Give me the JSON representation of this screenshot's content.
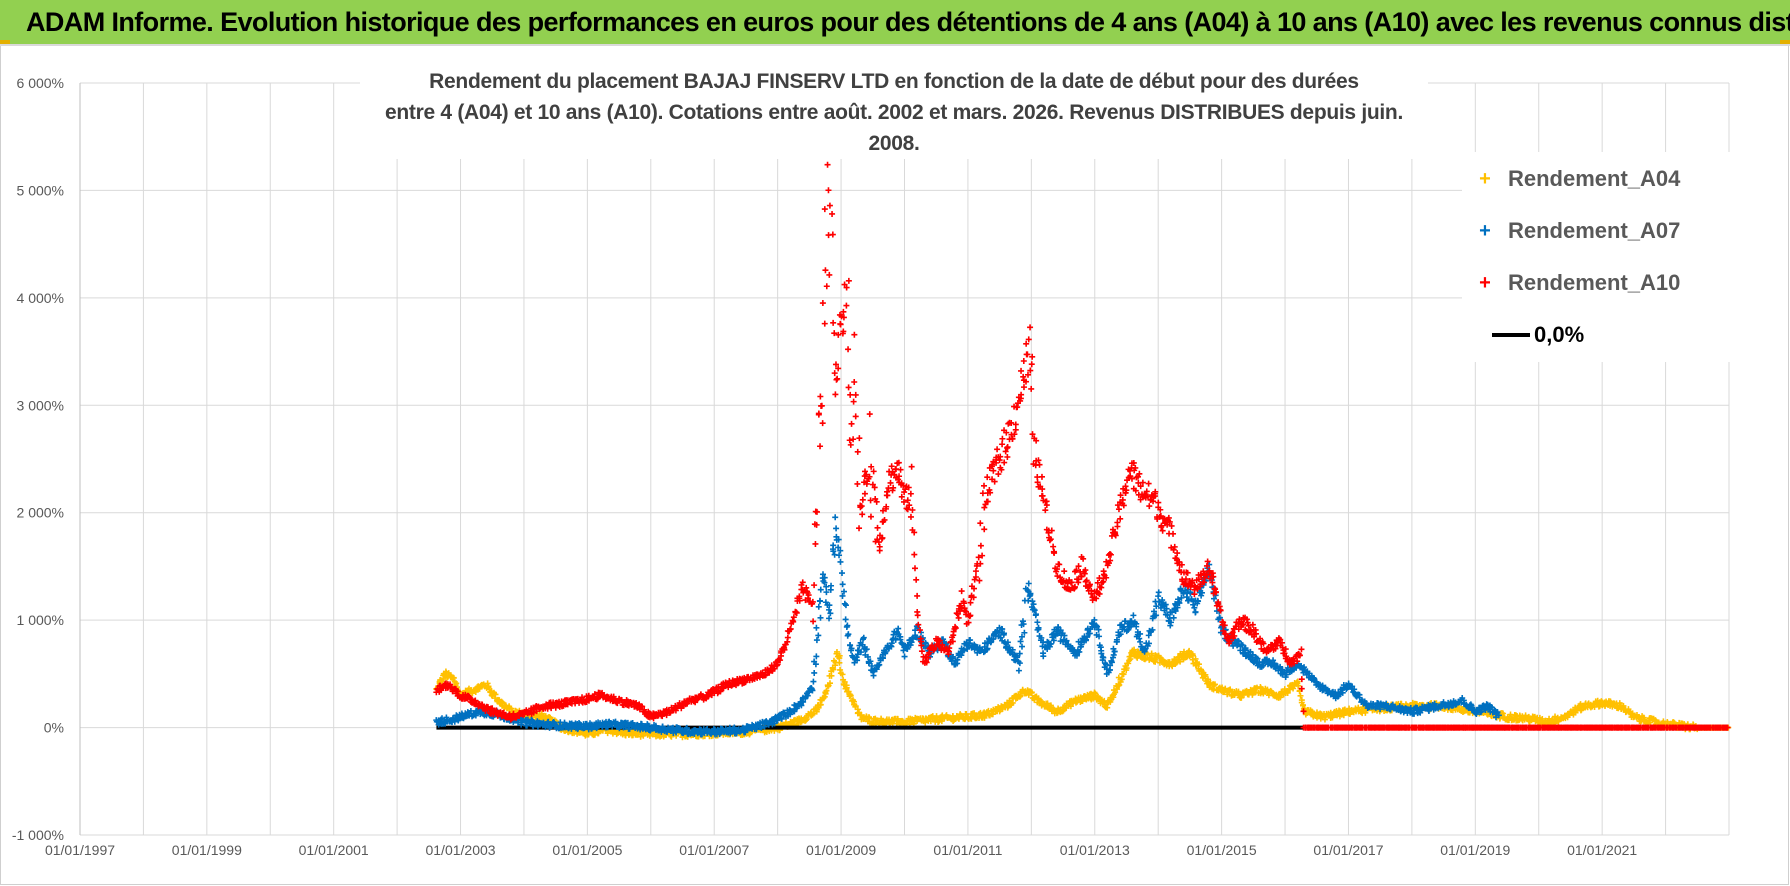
{
  "banner": {
    "title": "ADAM Informe. Evolution historique des performances en euros pour des détentions de 4 ans (A04) à 10 ans (A10) avec les revenus connus distribués"
  },
  "chart_data": {
    "type": "scatter",
    "title_line1": "Rendement du placement BAJAJ FINSERV LTD en fonction de la date de début pour des durées",
    "title_line2": "entre 4 (A04) et 10 ans (A10). Cotations entre août. 2002 et mars. 2026. Revenus DISTRIBUES depuis juin. 2008.",
    "xlabel": "",
    "ylabel": "",
    "xlim": [
      1997.0,
      2023.0
    ],
    "ylim": [
      -1000,
      6000
    ],
    "y_ticks": [
      {
        "value": -1000,
        "label": "-1 000%"
      },
      {
        "value": 0,
        "label": "0%"
      },
      {
        "value": 1000,
        "label": "1 000%"
      },
      {
        "value": 2000,
        "label": "2 000%"
      },
      {
        "value": 3000,
        "label": "3 000%"
      },
      {
        "value": 4000,
        "label": "4 000%"
      },
      {
        "value": 5000,
        "label": "5 000%"
      },
      {
        "value": 6000,
        "label": "6 000%"
      }
    ],
    "x_ticks": [
      {
        "value": 1997,
        "label": "01/01/1997"
      },
      {
        "value": 1999,
        "label": "01/01/1999"
      },
      {
        "value": 2001,
        "label": "01/01/2001"
      },
      {
        "value": 2003,
        "label": "01/01/2003"
      },
      {
        "value": 2005,
        "label": "01/01/2005"
      },
      {
        "value": 2007,
        "label": "01/01/2007"
      },
      {
        "value": 2009,
        "label": "01/01/2009"
      },
      {
        "value": 2011,
        "label": "01/01/2011"
      },
      {
        "value": 2013,
        "label": "01/01/2013"
      },
      {
        "value": 2015,
        "label": "01/01/2015"
      },
      {
        "value": 2017,
        "label": "01/01/2017"
      },
      {
        "value": 2019,
        "label": "01/01/2019"
      },
      {
        "value": 2021,
        "label": "01/01/2021"
      }
    ],
    "minor_gridlines_x": [
      1998,
      2000,
      2002,
      2004,
      2006,
      2008,
      2010,
      2012,
      2014,
      2016,
      2018,
      2020,
      2022,
      2023
    ],
    "grid": true,
    "legend_position": "top-right",
    "series": [
      {
        "name": "Rendement_A04",
        "color": "#ffc000",
        "marker": "+",
        "x": [
          2002.62,
          2002.75,
          2002.9,
          2003.0,
          2003.2,
          2003.4,
          2003.6,
          2003.8,
          2004.0,
          2004.3,
          2004.6,
          2004.9,
          2005.0,
          2005.3,
          2005.6,
          2006.0,
          2006.5,
          2007.0,
          2007.5,
          2008.0,
          2008.3,
          2008.6,
          2008.75,
          2008.85,
          2008.95,
          2009.05,
          2009.15,
          2009.3,
          2009.5,
          2010.0,
          2010.5,
          2011.0,
          2011.3,
          2011.6,
          2011.9,
          2012.1,
          2012.4,
          2012.7,
          2013.0,
          2013.2,
          2013.4,
          2013.6,
          2013.9,
          2014.2,
          2014.5,
          2014.8,
          2015.0,
          2015.3,
          2015.6,
          2015.9,
          2016.2,
          2016.3,
          2016.6,
          2017.0,
          2017.5,
          2018.0,
          2018.5,
          2019.0,
          2019.5,
          2019.9,
          2020.1,
          2020.4,
          2020.7,
          2021.0,
          2021.3,
          2021.5,
          2021.6,
          2022.0,
          2022.5,
          2023.0
        ],
        "y": [
          350,
          500,
          450,
          300,
          350,
          400,
          250,
          150,
          120,
          100,
          0,
          -40,
          -60,
          -20,
          -50,
          -60,
          -60,
          -50,
          -40,
          0,
          50,
          150,
          300,
          500,
          700,
          400,
          300,
          100,
          60,
          50,
          80,
          100,
          120,
          200,
          350,
          250,
          150,
          250,
          300,
          200,
          450,
          700,
          650,
          600,
          700,
          400,
          350,
          300,
          350,
          300,
          400,
          150,
          100,
          150,
          180,
          200,
          200,
          150,
          100,
          80,
          50,
          100,
          200,
          230,
          200,
          100,
          80,
          30,
          0,
          0
        ]
      },
      {
        "name": "Rendement_A07",
        "color": "#0070c0",
        "marker": "+",
        "x": [
          2002.62,
          2002.9,
          2003.0,
          2003.3,
          2003.6,
          2004.0,
          2004.3,
          2004.6,
          2005.0,
          2005.3,
          2005.6,
          2006.0,
          2006.5,
          2007.0,
          2007.5,
          2007.9,
          2008.2,
          2008.4,
          2008.55,
          2008.7,
          2008.82,
          2008.92,
          2009.0,
          2009.1,
          2009.2,
          2009.35,
          2009.5,
          2009.7,
          2009.9,
          2010.0,
          2010.2,
          2010.4,
          2010.6,
          2010.8,
          2011.0,
          2011.2,
          2011.5,
          2011.8,
          2011.95,
          2012.2,
          2012.4,
          2012.7,
          2013.0,
          2013.2,
          2013.4,
          2013.6,
          2013.8,
          2014.0,
          2014.2,
          2014.4,
          2014.6,
          2014.8,
          2015.0,
          2015.2,
          2015.4,
          2015.6,
          2015.8,
          2016.0,
          2016.2,
          2016.5,
          2016.8,
          2017.0,
          2017.3,
          2017.6,
          2018.0,
          2018.4,
          2018.8,
          2019.0,
          2019.2,
          2019.38
        ],
        "y": [
          50,
          80,
          100,
          150,
          120,
          50,
          30,
          20,
          10,
          30,
          20,
          0,
          -30,
          -40,
          -20,
          50,
          150,
          250,
          400,
          1400,
          1100,
          1900,
          1500,
          900,
          600,
          800,
          500,
          700,
          900,
          700,
          900,
          700,
          800,
          600,
          800,
          700,
          900,
          600,
          1300,
          700,
          900,
          700,
          1000,
          500,
          900,
          1000,
          700,
          1200,
          1000,
          1300,
          1100,
          1500,
          900,
          800,
          700,
          600,
          600,
          500,
          600,
          400,
          300,
          400,
          200,
          200,
          150,
          200,
          250,
          150,
          200,
          100
        ]
      },
      {
        "name": "Rendement_A10",
        "color": "#ff0000",
        "marker": "+",
        "x": [
          2002.62,
          2002.8,
          2003.0,
          2003.2,
          2003.5,
          2003.8,
          2004.0,
          2004.3,
          2004.6,
          2004.9,
          2005.2,
          2005.5,
          2005.8,
          2006.0,
          2006.3,
          2006.6,
          2006.9,
          2007.2,
          2007.5,
          2007.8,
          2008.0,
          2008.2,
          2008.4,
          2008.55,
          2008.62,
          2008.72,
          2008.8,
          2008.87,
          2008.92,
          2009.0,
          2009.1,
          2009.16,
          2009.22,
          2009.3,
          2009.45,
          2009.6,
          2009.75,
          2009.9,
          2010.0,
          2010.1,
          2010.2,
          2010.3,
          2010.5,
          2010.7,
          2010.9,
          2011.0,
          2011.15,
          2011.3,
          2011.5,
          2011.7,
          2011.85,
          2011.95,
          2012.05,
          2012.2,
          2012.4,
          2012.6,
          2012.8,
          2013.0,
          2013.2,
          2013.35,
          2013.55,
          2013.75,
          2013.95,
          2014.2,
          2014.4,
          2014.6,
          2014.8,
          2015.0,
          2015.1,
          2015.3,
          2015.5,
          2015.7,
          2015.9,
          2016.1,
          2016.25,
          2016.3,
          2016.6,
          2017.0,
          2017.5,
          2018.0,
          2018.5,
          2019.0,
          2019.5,
          2020.0,
          2020.5,
          2021.0,
          2021.5,
          2022.0,
          2022.5,
          2023.0
        ],
        "y": [
          350,
          400,
          300,
          250,
          150,
          100,
          120,
          200,
          220,
          250,
          300,
          250,
          200,
          100,
          150,
          250,
          300,
          400,
          450,
          500,
          600,
          900,
          1300,
          1100,
          2200,
          3500,
          5200,
          4500,
          3200,
          3800,
          4100,
          2600,
          3200,
          2000,
          2500,
          1700,
          2300,
          2400,
          2100,
          2200,
          1100,
          600,
          800,
          700,
          1200,
          1000,
          1500,
          2200,
          2500,
          2800,
          3200,
          3500,
          2600,
          2100,
          1500,
          1300,
          1500,
          1200,
          1500,
          1900,
          2400,
          2200,
          2100,
          1800,
          1400,
          1300,
          1500,
          1000,
          800,
          1000,
          900,
          700,
          800,
          600,
          700,
          0,
          0,
          0,
          0,
          0,
          0,
          0,
          0,
          0,
          0,
          0,
          0,
          0,
          0,
          0
        ]
      },
      {
        "name": "0,0%",
        "color": "#000000",
        "marker": "line",
        "x": [
          2002.62,
          2016.3
        ],
        "y": [
          0,
          0
        ]
      }
    ]
  }
}
